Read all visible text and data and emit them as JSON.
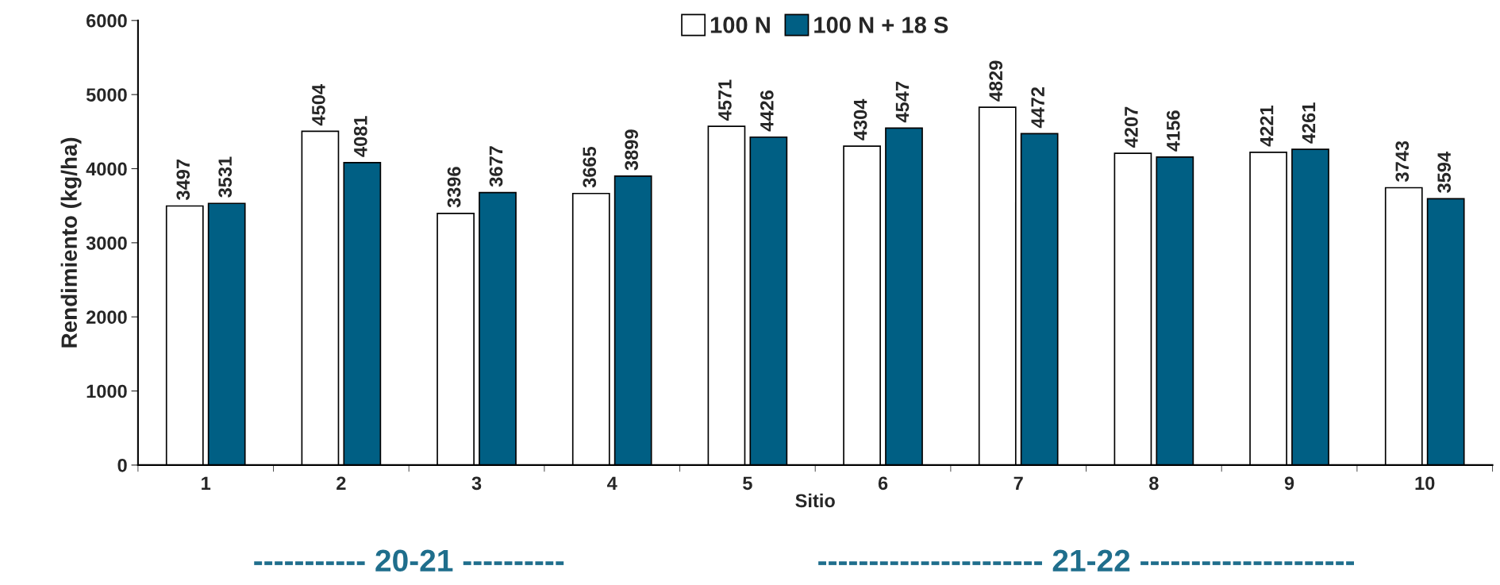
{
  "chart_data": {
    "type": "bar",
    "xlabel": "Sitio",
    "ylabel": "Rendimiento (kg/ha)",
    "categories": [
      "1",
      "2",
      "3",
      "4",
      "5",
      "6",
      "7",
      "8",
      "9",
      "10"
    ],
    "series": [
      {
        "name": "100 N",
        "color": "#ffffff",
        "values": [
          3497,
          4504,
          3396,
          3665,
          4571,
          4304,
          4829,
          4207,
          4221,
          3743
        ]
      },
      {
        "name": "100 N + 18 S",
        "color": "#005f84",
        "values": [
          3531,
          4081,
          3677,
          3899,
          4426,
          4547,
          4472,
          4156,
          4261,
          3594
        ]
      }
    ],
    "ylim": [
      0,
      6000
    ],
    "yticks": [
      0,
      1000,
      2000,
      3000,
      4000,
      5000,
      6000
    ],
    "data_labels": true,
    "legend": "top",
    "grid": false,
    "annotations": [
      "----------- 20-21 ----------",
      "---------------------- 21-22 ---------------------"
    ]
  }
}
